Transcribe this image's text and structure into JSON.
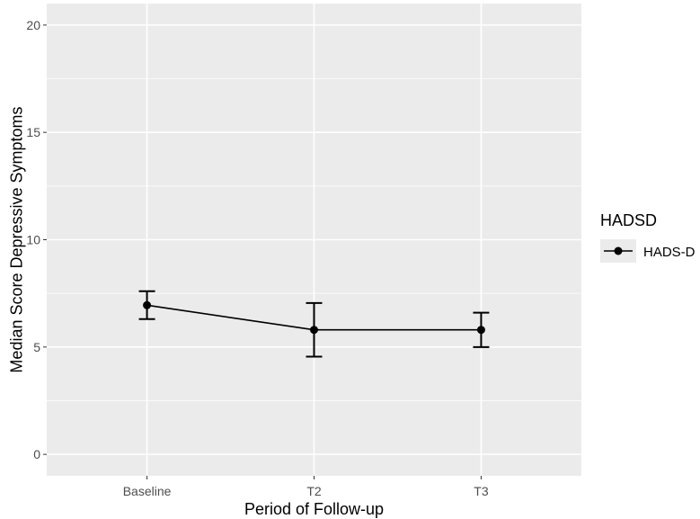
{
  "chart_data": {
    "type": "line",
    "categories": [
      "Baseline",
      "T2",
      "T3"
    ],
    "series": [
      {
        "name": "HADS-D",
        "values": [
          6.95,
          5.8,
          5.8
        ],
        "error_low": [
          6.3,
          4.55,
          5.0
        ],
        "error_high": [
          7.6,
          7.05,
          6.6
        ]
      }
    ],
    "xlabel": "Period of Follow-up",
    "ylabel": "Median Score Depressive Symptoms",
    "ylim": [
      -1,
      21
    ],
    "yticks": [
      0,
      5,
      10,
      15,
      20
    ],
    "grid": true,
    "legend": {
      "title": "HADSD",
      "placement": "right"
    },
    "colors": {
      "panel": "#ebebeb",
      "grid": "#ffffff",
      "series": "#000000"
    }
  }
}
